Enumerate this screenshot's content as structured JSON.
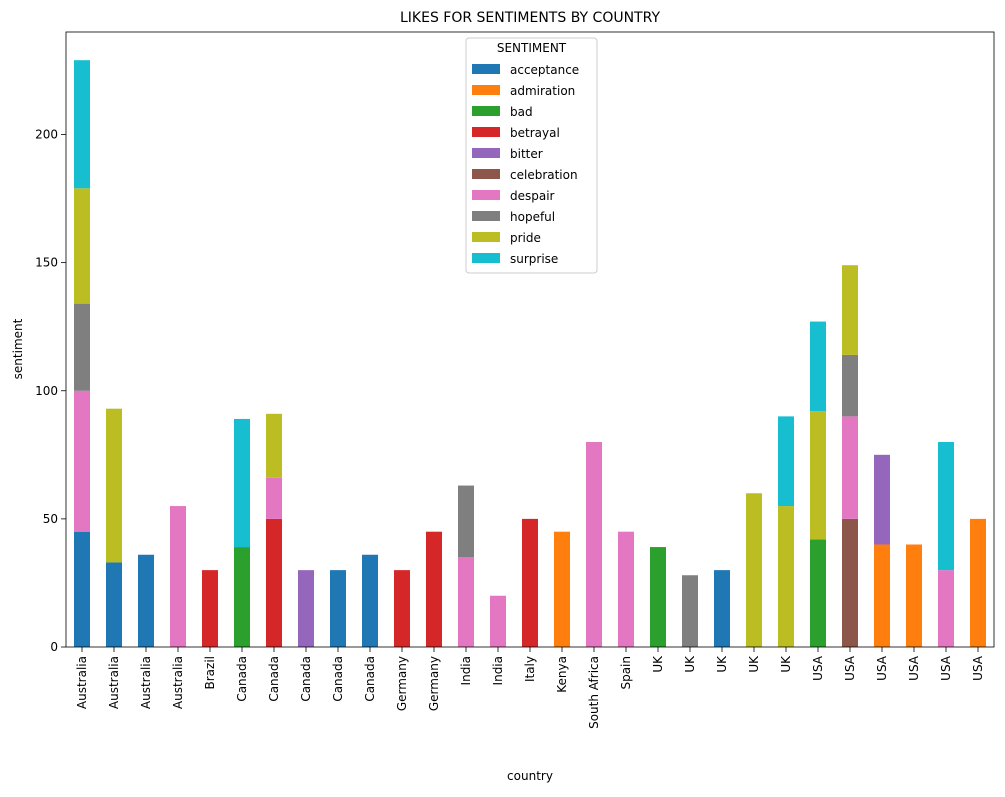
{
  "chart_data": {
    "type": "bar",
    "stacked": true,
    "title": "LIKES FOR SENTIMENTS BY COUNTRY",
    "xlabel": "country",
    "ylabel": "sentiment",
    "ylim": [
      0,
      240
    ],
    "yticks": [
      0,
      50,
      100,
      150,
      200
    ],
    "grid": false,
    "legend": {
      "title": "SENTIMENT",
      "placement": "upper-center"
    },
    "categories": [
      "Australia",
      "Australia",
      "Australia",
      "Australia",
      "Brazil",
      "Canada",
      "Canada",
      "Canada",
      "Canada",
      "Canada",
      "Germany",
      "Germany",
      "India",
      "India",
      "Italy",
      "Kenya",
      "South Africa",
      "Spain",
      "UK",
      "UK",
      "UK",
      "UK",
      "UK",
      "USA",
      "USA",
      "USA",
      "USA",
      "USA",
      "USA"
    ],
    "series": [
      {
        "name": "acceptance",
        "color": "#1f77b4",
        "values": [
          45,
          33,
          36,
          0,
          0,
          0,
          0,
          0,
          30,
          36,
          0,
          0,
          0,
          0,
          0,
          0,
          0,
          0,
          0,
          0,
          30,
          0,
          0,
          0,
          0,
          0,
          0,
          0,
          0
        ]
      },
      {
        "name": "admiration",
        "color": "#ff7f0e",
        "values": [
          0,
          0,
          0,
          0,
          0,
          0,
          0,
          0,
          0,
          0,
          0,
          0,
          0,
          0,
          0,
          45,
          0,
          0,
          0,
          0,
          0,
          0,
          0,
          0,
          0,
          40,
          40,
          0,
          50
        ]
      },
      {
        "name": "bad",
        "color": "#2ca02c",
        "values": [
          0,
          0,
          0,
          0,
          0,
          39,
          0,
          0,
          0,
          0,
          0,
          0,
          0,
          0,
          0,
          0,
          0,
          0,
          39,
          0,
          0,
          0,
          0,
          42,
          0,
          0,
          0,
          0,
          0
        ]
      },
      {
        "name": "betrayal",
        "color": "#d62728",
        "values": [
          0,
          0,
          0,
          0,
          30,
          0,
          50,
          0,
          0,
          0,
          30,
          45,
          0,
          0,
          50,
          0,
          0,
          0,
          0,
          0,
          0,
          0,
          0,
          0,
          0,
          0,
          0,
          0,
          0
        ]
      },
      {
        "name": "bitter",
        "color": "#9467bd",
        "values": [
          0,
          0,
          0,
          0,
          0,
          0,
          0,
          30,
          0,
          0,
          0,
          0,
          0,
          0,
          0,
          0,
          0,
          0,
          0,
          0,
          0,
          0,
          0,
          0,
          0,
          35,
          0,
          0,
          0
        ]
      },
      {
        "name": "celebration",
        "color": "#8c564b",
        "values": [
          0,
          0,
          0,
          0,
          0,
          0,
          0,
          0,
          0,
          0,
          0,
          0,
          0,
          0,
          0,
          0,
          0,
          0,
          0,
          0,
          0,
          0,
          0,
          0,
          50,
          0,
          0,
          0,
          0
        ]
      },
      {
        "name": "despair",
        "color": "#e377c2",
        "values": [
          55,
          0,
          0,
          55,
          0,
          0,
          16,
          0,
          0,
          0,
          0,
          0,
          35,
          20,
          0,
          0,
          80,
          45,
          0,
          0,
          0,
          0,
          0,
          0,
          40,
          0,
          0,
          30,
          0
        ]
      },
      {
        "name": "hopeful",
        "color": "#7f7f7f",
        "values": [
          34,
          0,
          0,
          0,
          0,
          0,
          0,
          0,
          0,
          0,
          0,
          0,
          28,
          0,
          0,
          0,
          0,
          0,
          0,
          28,
          0,
          0,
          0,
          0,
          24,
          0,
          0,
          0,
          0
        ]
      },
      {
        "name": "pride",
        "color": "#bcbd22",
        "values": [
          45,
          60,
          0,
          0,
          0,
          0,
          25,
          0,
          0,
          0,
          0,
          0,
          0,
          0,
          0,
          0,
          0,
          0,
          0,
          0,
          0,
          60,
          55,
          50,
          35,
          0,
          0,
          0,
          0
        ]
      },
      {
        "name": "surprise",
        "color": "#17becf",
        "values": [
          50,
          0,
          0,
          0,
          0,
          50,
          0,
          0,
          0,
          0,
          0,
          0,
          0,
          0,
          0,
          0,
          0,
          0,
          0,
          0,
          0,
          0,
          35,
          35,
          0,
          0,
          0,
          50,
          0
        ]
      }
    ]
  }
}
